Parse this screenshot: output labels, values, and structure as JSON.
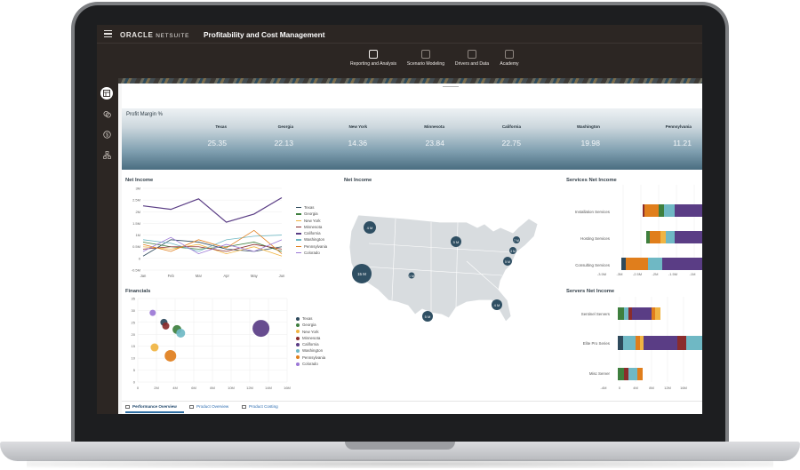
{
  "header": {
    "brand": "ORACLE",
    "brand_sub": "NETSUITE",
    "title": "Profitability and Cost Management"
  },
  "nav": [
    {
      "label": "Reporting and Analysis",
      "icon": "report-icon",
      "active": true
    },
    {
      "label": "Scenario Modeling",
      "icon": "scenario-icon",
      "active": false
    },
    {
      "label": "Drivers and Data",
      "icon": "drivers-icon",
      "active": false
    },
    {
      "label": "Academy",
      "icon": "academy-icon",
      "active": false
    }
  ],
  "rail": [
    {
      "icon": "dashboard-icon",
      "active": true
    },
    {
      "icon": "coins-icon",
      "active": false
    },
    {
      "icon": "dollar-icon",
      "active": false
    },
    {
      "icon": "hierarchy-icon",
      "active": false
    }
  ],
  "kpi": {
    "title": "Profit Margin %",
    "items": [
      {
        "state": "Texas",
        "value": "25.35"
      },
      {
        "state": "Georgia",
        "value": "22.13"
      },
      {
        "state": "New York",
        "value": "14.36"
      },
      {
        "state": "Minnesota",
        "value": "23.84"
      },
      {
        "state": "California",
        "value": "22.75"
      },
      {
        "state": "Washington",
        "value": "19.98"
      },
      {
        "state": "Pennsylvania",
        "value": "11.21"
      }
    ]
  },
  "series_legend": [
    "Texas",
    "Georgia",
    "New York",
    "Minnesota",
    "California",
    "Washington",
    "Pennsylvania",
    "Colorado"
  ],
  "series_colors": [
    "#2e4a5c",
    "#3e7f3e",
    "#f0b442",
    "#8a2c2c",
    "#5a3d85",
    "#6fb8c4",
    "#e07e1c",
    "#9b77d6"
  ],
  "net_income_line": {
    "title": "Net Income",
    "type": "line",
    "categories": [
      "Jan",
      "Feb",
      "Mar",
      "Apr",
      "May",
      "Jun"
    ],
    "y_ticks": [
      "3M",
      "2.5M",
      "2M",
      "1.5M",
      "1M",
      "0.5M",
      "0",
      "-0.5M"
    ],
    "ylim": [
      -0.5,
      3
    ],
    "series": [
      {
        "name": "Texas",
        "values": [
          0.1,
          0.8,
          0.7,
          0.4,
          0.3,
          0.5
        ]
      },
      {
        "name": "Georgia",
        "values": [
          0.7,
          0.5,
          0.4,
          0.5,
          0.7,
          0.3
        ]
      },
      {
        "name": "New York",
        "values": [
          0.5,
          0.4,
          0.6,
          0.2,
          0.5,
          0.1
        ]
      },
      {
        "name": "Minnesota",
        "values": [
          0.4,
          0.5,
          0.5,
          0.3,
          0.6,
          0.4
        ]
      },
      {
        "name": "California",
        "values": [
          2.25,
          2.1,
          2.55,
          1.55,
          1.9,
          2.6
        ]
      },
      {
        "name": "Washington",
        "values": [
          0.8,
          0.65,
          0.3,
          0.8,
          0.95,
          1.0
        ]
      },
      {
        "name": "Pennsylvania",
        "values": [
          0.6,
          0.3,
          0.8,
          0.45,
          1.2,
          0.2
        ]
      },
      {
        "name": "Colorado",
        "values": [
          0.3,
          0.9,
          0.2,
          0.6,
          0.3,
          0.8
        ]
      }
    ]
  },
  "financials": {
    "title": "Financials",
    "type": "scatter",
    "x_ticks": [
      "0",
      "2M",
      "4M",
      "6M",
      "8M",
      "10M",
      "12M",
      "14M",
      "16M"
    ],
    "y_ticks": [
      "35",
      "30",
      "25",
      "20",
      "15",
      "10",
      "5",
      "0"
    ],
    "xlim": [
      0,
      16
    ],
    "ylim": [
      0,
      35
    ],
    "points": [
      {
        "name": "Texas",
        "x": 2.8,
        "y": 25,
        "r": 4
      },
      {
        "name": "Georgia",
        "x": 4.2,
        "y": 22,
        "r": 5
      },
      {
        "name": "New York",
        "x": 1.8,
        "y": 14.5,
        "r": 4.5
      },
      {
        "name": "Minnesota",
        "x": 3.0,
        "y": 23.5,
        "r": 4
      },
      {
        "name": "California",
        "x": 13.2,
        "y": 22.5,
        "r": 9.5
      },
      {
        "name": "Washington",
        "x": 4.6,
        "y": 20.5,
        "r": 5
      },
      {
        "name": "Pennsylvania",
        "x": 3.5,
        "y": 11,
        "r": 6.5
      },
      {
        "name": "Colorado",
        "x": 1.6,
        "y": 29,
        "r": 3.5
      }
    ]
  },
  "net_income_map": {
    "title": "Net Income",
    "markers": [
      "4 M",
      "5 M",
      "15 M",
      "1 M",
      "5 M",
      "3 M",
      "7 M",
      "4 M",
      "5 M"
    ]
  },
  "services_net_income": {
    "title": "Services Net Income",
    "type": "bar",
    "categories": [
      "Installation Services",
      "Hosting Services",
      "Consulting Services"
    ],
    "x_ticks": [
      "-3.5M",
      "-3M",
      "-2.5M",
      "-2M",
      "-1.5M",
      "-1M"
    ]
  },
  "servers_net_income": {
    "title": "Servers Net Income",
    "type": "bar",
    "categories": [
      "Sentinel Servers",
      "Elite Pro Series",
      "Misc Server"
    ],
    "x_ticks": [
      "-4M",
      "0",
      "4M",
      "8M",
      "12M",
      "16M"
    ]
  },
  "tabs": [
    {
      "label": "Performance Overview",
      "active": true
    },
    {
      "label": "Product Overview",
      "active": false
    },
    {
      "label": "Product Costing",
      "active": false
    }
  ]
}
